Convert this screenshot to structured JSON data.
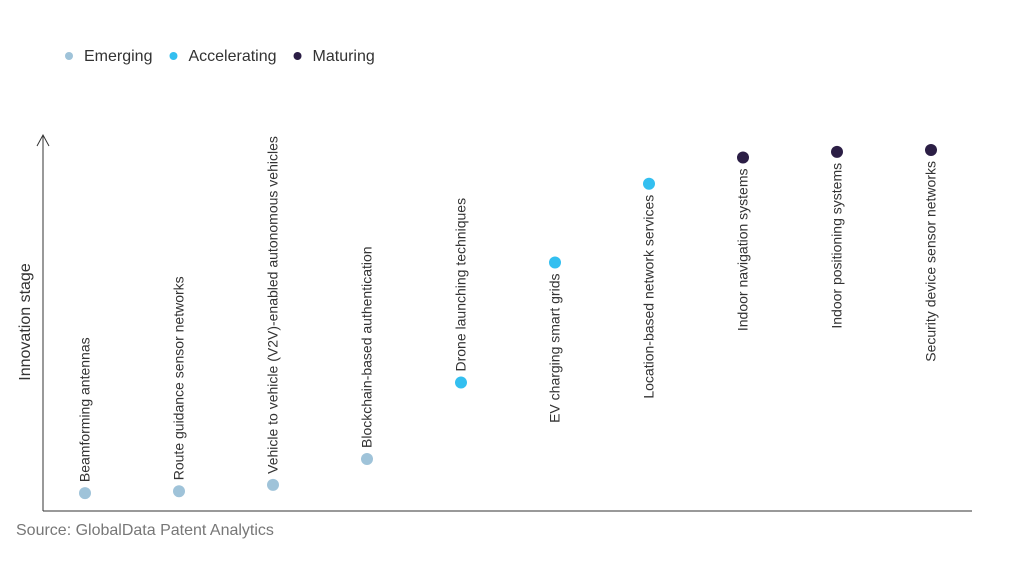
{
  "chart_data": {
    "type": "scatter",
    "y_label": "Innovation stage",
    "source": "Source: GlobalData Patent Analytics",
    "categories": [
      "Beamforming antennas",
      "Route guidance sensor networks",
      "Vehicle to vehicle (V2V)-enabled autonomous vehicles",
      "Blockchain-based authentication",
      "Drone launching techniques",
      "EV charging smart grids",
      "Location-based network services",
      "Indoor navigation systems",
      "Indoor positioning systems",
      "Security device sensor networks"
    ],
    "series": [
      {
        "name": "Emerging",
        "color": "#9fc3d9",
        "values": [
          4.5,
          5,
          6.7,
          13.6,
          null,
          null,
          null,
          null,
          null,
          null
        ]
      },
      {
        "name": "Accelerating",
        "color": "#33bff0",
        "values": [
          null,
          null,
          null,
          null,
          34,
          66,
          87,
          null,
          null,
          null
        ]
      },
      {
        "name": "Maturing",
        "color": "#2b1e45",
        "values": [
          null,
          null,
          null,
          null,
          null,
          null,
          null,
          94,
          95.5,
          96
        ]
      }
    ],
    "ylim": [
      0,
      100
    ]
  }
}
